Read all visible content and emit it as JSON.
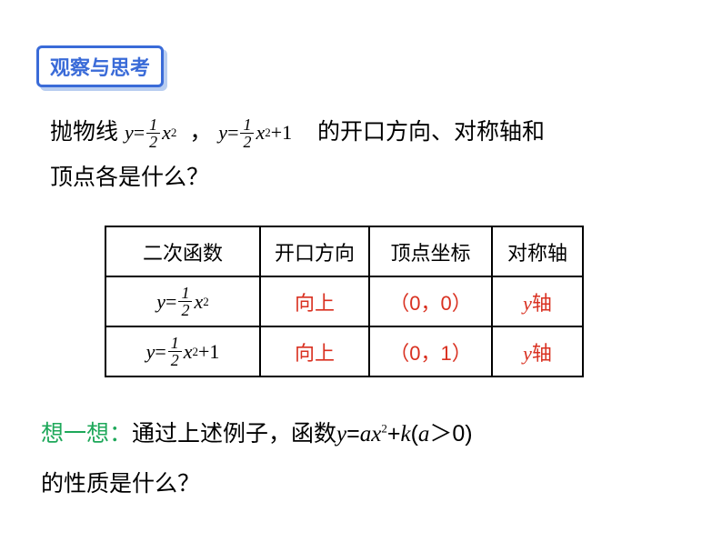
{
  "badge": {
    "text": "观察与思考",
    "border_color": "#3a6bd8",
    "text_color": "#3a6bd8",
    "shadow_color": "#b8cdf0"
  },
  "question": {
    "pre": "抛物线",
    "eq1": {
      "lhs": "y",
      "coef_num": "1",
      "coef_den": "2",
      "var": "x",
      "pow": "2",
      "tail": ""
    },
    "comma": "，",
    "eq2": {
      "lhs": "y",
      "coef_num": "1",
      "coef_den": "2",
      "var": "x",
      "pow": "2",
      "tail": "+1"
    },
    "post1": "的开口方向、对称轴和",
    "post2": "顶点各是什么？"
  },
  "table": {
    "headers": [
      "二次函数",
      "开口方向",
      "顶点坐标",
      "对称轴"
    ],
    "rows": [
      {
        "func": {
          "lhs": "y",
          "coef_num": "1",
          "coef_den": "2",
          "var": "x",
          "pow": "2",
          "tail": ""
        },
        "dir": "向上",
        "vertex": "（0，0）",
        "axis_var": "y",
        "axis_suffix": "轴"
      },
      {
        "func": {
          "lhs": "y",
          "coef_num": "1",
          "coef_den": "2",
          "var": "x",
          "pow": "2",
          "tail": "+1"
        },
        "dir": "向上",
        "vertex": "（0，1）",
        "axis_var": "y",
        "axis_suffix": "轴"
      }
    ],
    "colors": {
      "answer": "#d93020",
      "border": "#000000"
    }
  },
  "think": {
    "lead": "想一想：",
    "line1a": "通过上述例子，函数",
    "func": {
      "y": "y",
      "eq": "=",
      "a": "a",
      "x": "x",
      "p": "2",
      "plus": "+",
      "k": "k"
    },
    "cond_open": "(",
    "cond_a": "a",
    "cond_rest": "＞0)",
    "line2": "的性质是什么？",
    "lead_color": "#1ea85a"
  }
}
